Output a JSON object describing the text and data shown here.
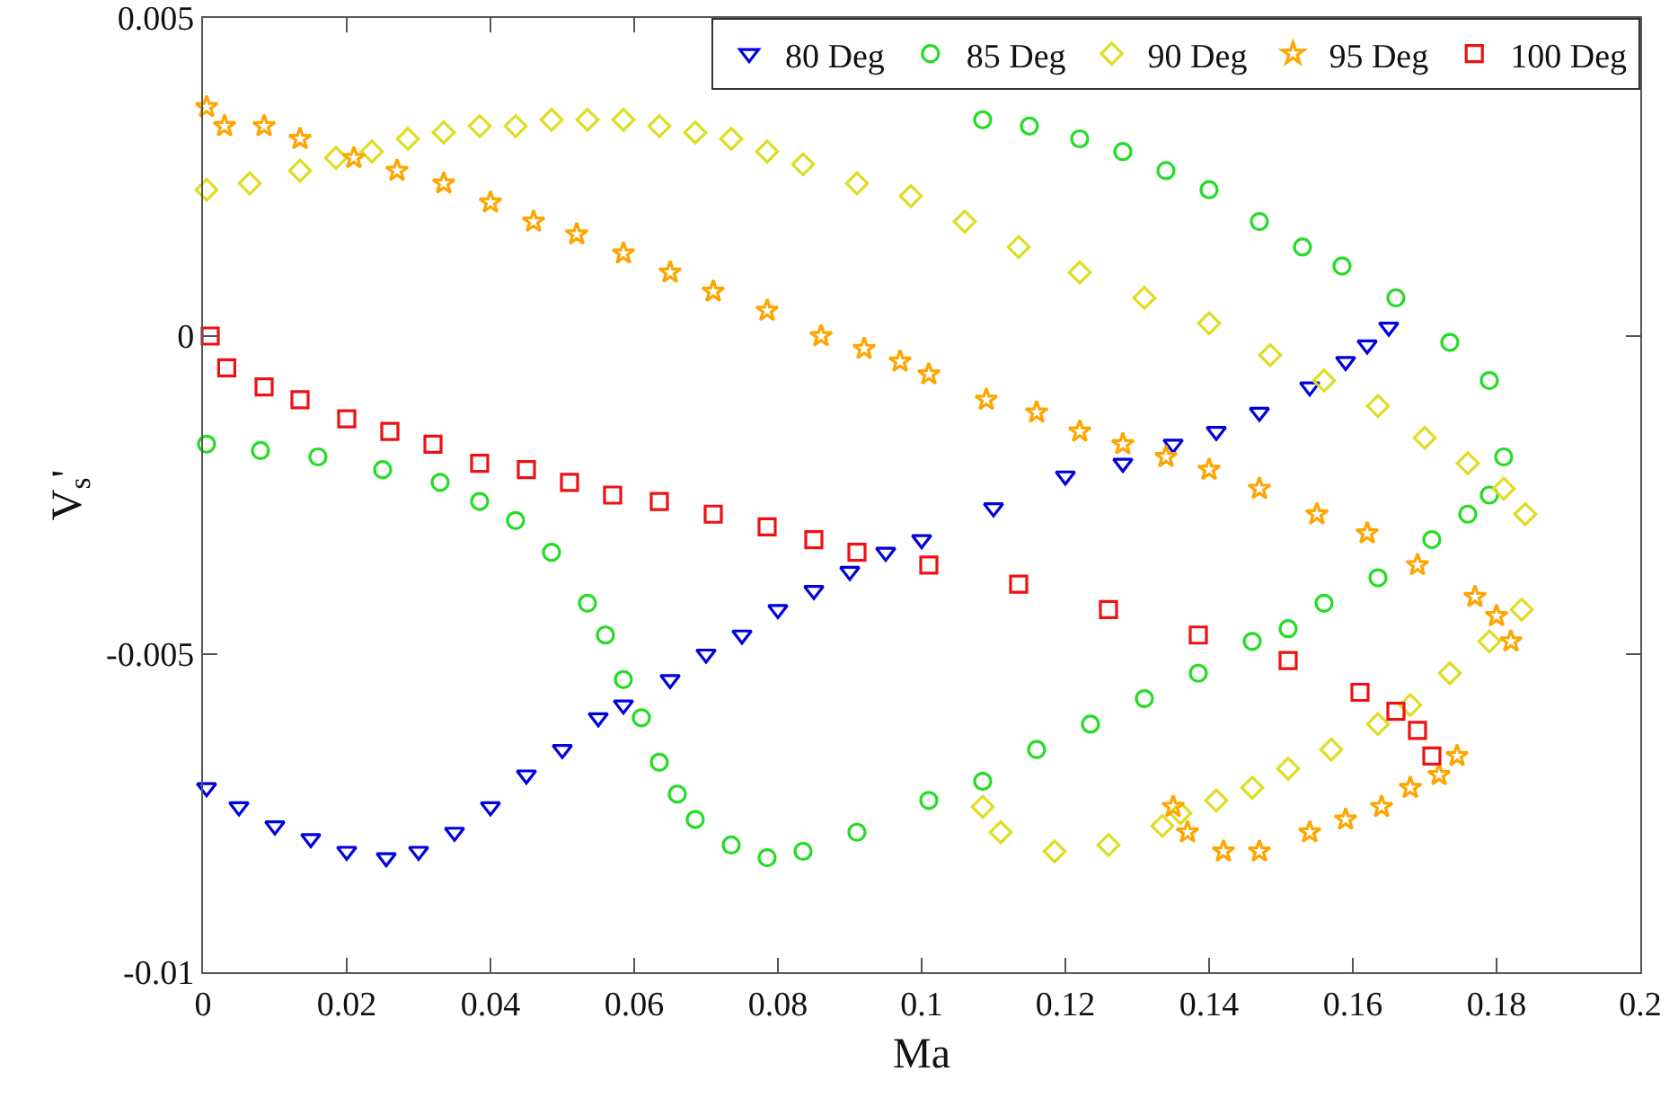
{
  "chart_data": {
    "type": "scatter",
    "xlabel": "Ma",
    "ylabel": "V$_{s}$'",
    "xlim": [
      0,
      0.2
    ],
    "ylim": [
      -0.01,
      0.005
    ],
    "xticks": [
      0,
      0.02,
      0.04,
      0.06,
      0.08,
      0.1,
      0.12,
      0.14,
      0.16,
      0.18,
      0.2
    ],
    "yticks": [
      -0.01,
      -0.005,
      0,
      0.005
    ],
    "grid": false,
    "legend": "top right",
    "series": [
      {
        "name": "80 Deg",
        "color": "#0000dd",
        "marker": "triangle",
        "x": [
          0.0005,
          0.005,
          0.01,
          0.015,
          0.02,
          0.0255,
          0.03,
          0.035,
          0.04,
          0.045,
          0.05,
          0.055,
          0.0585,
          0.065,
          0.07,
          0.075,
          0.08,
          0.085,
          0.09,
          0.095,
          0.1,
          0.11,
          0.12,
          0.128,
          0.135,
          0.141,
          0.147,
          0.154,
          0.159,
          0.162,
          0.165
        ],
        "values": [
          -0.0071,
          -0.0074,
          -0.0077,
          -0.0079,
          -0.0081,
          -0.0082,
          -0.0081,
          -0.0078,
          -0.0074,
          -0.0069,
          -0.0065,
          -0.006,
          -0.0058,
          -0.0054,
          -0.005,
          -0.0047,
          -0.0043,
          -0.004,
          -0.0037,
          -0.0034,
          -0.0032,
          -0.0027,
          -0.0022,
          -0.002,
          -0.0017,
          -0.0015,
          -0.0012,
          -0.0008,
          -0.0004,
          -0.00014,
          0.00014
        ]
      },
      {
        "name": "85 Deg",
        "color": "#22dd22",
        "marker": "circle",
        "x": [
          0.0005,
          0.008,
          0.016,
          0.025,
          0.033,
          0.0385,
          0.0435,
          0.0485,
          0.0535,
          0.056,
          0.0585,
          0.061,
          0.0635,
          0.066,
          0.0685,
          0.0735,
          0.0785,
          0.0835,
          0.091,
          0.101,
          0.1085,
          0.116,
          0.1235,
          0.131,
          0.1385,
          0.146,
          0.151,
          0.156,
          0.1635,
          0.171,
          0.176,
          0.179,
          0.181,
          0.1085,
          0.115,
          0.122,
          0.128,
          0.134,
          0.14,
          0.147,
          0.153,
          0.1585,
          0.166,
          0.1735,
          0.179
        ],
        "values": [
          -0.0017,
          -0.0018,
          -0.0019,
          -0.0021,
          -0.0023,
          -0.0026,
          -0.0029,
          -0.0034,
          -0.0042,
          -0.0047,
          -0.0054,
          -0.006,
          -0.0067,
          -0.0072,
          -0.0076,
          -0.008,
          -0.0082,
          -0.0081,
          -0.0078,
          -0.0073,
          -0.007,
          -0.0065,
          -0.0061,
          -0.0057,
          -0.0053,
          -0.0048,
          -0.0046,
          -0.0042,
          -0.0038,
          -0.0032,
          -0.0028,
          -0.0025,
          -0.0019,
          0.0034,
          0.0033,
          0.0031,
          0.0029,
          0.0026,
          0.0023,
          0.0018,
          0.0014,
          0.0011,
          0.0006,
          -0.0001,
          -0.0007
        ]
      },
      {
        "name": "90 Deg",
        "color": "#dddd22",
        "marker": "diamond",
        "x": [
          0.0005,
          0.0065,
          0.0135,
          0.0185,
          0.0235,
          0.0285,
          0.0335,
          0.0385,
          0.0435,
          0.0485,
          0.0535,
          0.0585,
          0.0635,
          0.0685,
          0.0735,
          0.0785,
          0.0835,
          0.091,
          0.0985,
          0.106,
          0.1135,
          0.122,
          0.131,
          0.14,
          0.1485,
          0.156,
          0.1635,
          0.17,
          0.176,
          0.181,
          0.184,
          0.1085,
          0.111,
          0.1185,
          0.126,
          0.1335,
          0.136,
          0.141,
          0.146,
          0.151,
          0.157,
          0.1635,
          0.168,
          0.1735,
          0.179,
          0.1835
        ],
        "values": [
          0.0023,
          0.0024,
          0.0026,
          0.0028,
          0.0029,
          0.0031,
          0.0032,
          0.0033,
          0.0033,
          0.0034,
          0.0034,
          0.0034,
          0.0033,
          0.0032,
          0.0031,
          0.0029,
          0.0027,
          0.0024,
          0.0022,
          0.0018,
          0.0014,
          0.001,
          0.0006,
          0.0002,
          -0.0003,
          -0.0007,
          -0.0011,
          -0.0016,
          -0.002,
          -0.0024,
          -0.0028,
          -0.0074,
          -0.0078,
          -0.0081,
          -0.008,
          -0.0077,
          -0.0075,
          -0.0073,
          -0.0071,
          -0.0068,
          -0.0065,
          -0.0061,
          -0.0058,
          -0.0053,
          -0.0048,
          -0.0043
        ]
      },
      {
        "name": "95 Deg",
        "color": "#ffa500",
        "marker": "star",
        "x": [
          0.0005,
          0.003,
          0.0085,
          0.0135,
          0.021,
          0.027,
          0.0335,
          0.04,
          0.046,
          0.052,
          0.0585,
          0.065,
          0.071,
          0.0785,
          0.086,
          0.092,
          0.097,
          0.101,
          0.109,
          0.116,
          0.122,
          0.128,
          0.134,
          0.14,
          0.147,
          0.155,
          0.162,
          0.169,
          0.177,
          0.18,
          0.182,
          0.135,
          0.137,
          0.142,
          0.147,
          0.154,
          0.159,
          0.164,
          0.168,
          0.172,
          0.1745
        ],
        "values": [
          0.0036,
          0.0033,
          0.0033,
          0.0031,
          0.0028,
          0.0026,
          0.0024,
          0.0021,
          0.0018,
          0.0016,
          0.0013,
          0.001,
          0.0007,
          0.0004,
          0.0,
          -0.0002,
          -0.0004,
          -0.0006,
          -0.001,
          -0.0012,
          -0.0015,
          -0.0017,
          -0.0019,
          -0.0021,
          -0.0024,
          -0.0028,
          -0.0031,
          -0.0036,
          -0.0041,
          -0.0044,
          -0.0048,
          -0.0074,
          -0.0078,
          -0.0081,
          -0.0081,
          -0.0078,
          -0.0076,
          -0.0074,
          -0.0071,
          -0.0069,
          -0.0066
        ]
      },
      {
        "name": "100 Deg",
        "color": "#ee1111",
        "marker": "square",
        "x": [
          0.001,
          0.0033,
          0.0085,
          0.0135,
          0.02,
          0.026,
          0.032,
          0.0385,
          0.045,
          0.051,
          0.057,
          0.0635,
          0.071,
          0.0785,
          0.085,
          0.091,
          0.101,
          0.1135,
          0.126,
          0.1385,
          0.151,
          0.161,
          0.166,
          0.169,
          0.171
        ],
        "values": [
          0.0,
          -0.0005,
          -0.0008,
          -0.001,
          -0.0013,
          -0.0015,
          -0.0017,
          -0.002,
          -0.0021,
          -0.0023,
          -0.0025,
          -0.0026,
          -0.0028,
          -0.003,
          -0.0032,
          -0.0034,
          -0.0036,
          -0.0039,
          -0.0043,
          -0.0047,
          -0.0051,
          -0.0056,
          -0.0059,
          -0.0062,
          -0.0066
        ]
      }
    ]
  }
}
